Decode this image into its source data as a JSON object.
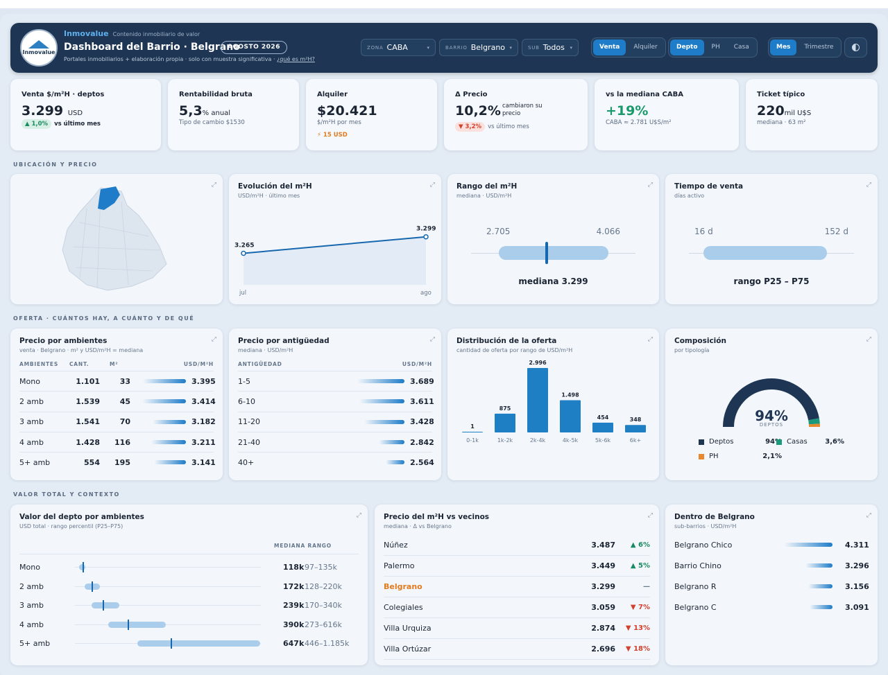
{
  "header": {
    "brand": "Inmovalue",
    "tagline": "Contenido inmobiliario de valor",
    "title": "Dashboard del Barrio · Belgrano",
    "badge": "AGOSTO 2026",
    "subtitle": "Portales inmobiliarios + elaboración propia · solo con muestra significativa ·",
    "help_link": "¿qué es m²H?",
    "logo_text": "Inmovalue",
    "filters": [
      {
        "label": "ZONA",
        "value": "CABA"
      },
      {
        "label": "BARRIO",
        "value": "Belgrano"
      },
      {
        "label": "SUB",
        "value": "Todos"
      }
    ],
    "operation": [
      "Venta",
      "Alquiler"
    ],
    "property_type": [
      "Depto",
      "PH",
      "Casa"
    ],
    "period": [
      "Mes",
      "Trimestre"
    ]
  },
  "kpis": {
    "venta": {
      "label": "Venta $/m²H · deptos",
      "value": "3.299",
      "unit": "USD",
      "delta": "▲ 1,0%",
      "delta_text": "vs último mes"
    },
    "rentabilidad": {
      "label": "Rentabilidad bruta",
      "value": "5,3",
      "unit": "% anual",
      "note": "Tipo de cambio $1530"
    },
    "alquiler": {
      "label": "Alquiler",
      "value": "$20.421",
      "note": "$/m²H por mes",
      "flag": "⚡ 15 USD"
    },
    "precio": {
      "label": "Δ Precio",
      "value": "10,2%",
      "side": "cambiaron su precio",
      "delta": "▼ 3,2%",
      "delta_text": "vs último mes"
    },
    "mediana": {
      "label": "vs la mediana CABA",
      "value": "+19%",
      "note": "CABA ≈ 2.781 U$S/m²"
    },
    "ticket": {
      "label": "Ticket típico",
      "value": "220",
      "unit": "mil U$S",
      "note": "mediana · 63 m²"
    }
  },
  "sections": {
    "ubicacion": "UBICACIÓN Y PRECIO",
    "oferta": "OFERTA · CUÁNTOS HAY, A CUÁNTO Y DE QUÉ",
    "valor": "VALOR TOTAL Y CONTEXTO"
  },
  "evolucion": {
    "title": "Evolución del m²H",
    "sub": "USD/m²H · último mes",
    "chart_data": {
      "type": "line",
      "x": [
        "jul",
        "ago"
      ],
      "values": [
        3265,
        3299
      ],
      "labels": [
        "3.265",
        "3.299"
      ]
    }
  },
  "rango": {
    "title": "Rango del m²H",
    "sub": "mediana · USD/m²H",
    "low": "2.705",
    "high": "4.066",
    "median_label": "mediana 3.299",
    "median_pos": 0.435
  },
  "tiempo": {
    "title": "Tiempo de venta",
    "sub": "días activo",
    "low": "16 d",
    "high": "152 d",
    "range_label": "rango P25 – P75"
  },
  "ambientes": {
    "title": "Precio por ambientes",
    "sub": "venta · Belgrano · m² y USD/m²H = mediana",
    "headers": [
      "AMBIENTES",
      "CANT.",
      "M²",
      "USD/M²H"
    ],
    "rows": [
      {
        "name": "Mono",
        "cant": "1.101",
        "m2": "33",
        "usd": "3.395",
        "v": 3395
      },
      {
        "name": "2 amb",
        "cant": "1.539",
        "m2": "45",
        "usd": "3.414",
        "v": 3414
      },
      {
        "name": "3 amb",
        "cant": "1.541",
        "m2": "70",
        "usd": "3.182",
        "v": 3182
      },
      {
        "name": "4 amb",
        "cant": "1.428",
        "m2": "116",
        "usd": "3.211",
        "v": 3211
      },
      {
        "name": "5+ amb",
        "cant": "554",
        "m2": "195",
        "usd": "3.141",
        "v": 3141
      }
    ]
  },
  "antiguedad": {
    "title": "Precio por antigüedad",
    "sub": "mediana · USD/m²H",
    "headers": [
      "ANTIGÜEDAD",
      "USD/M²H"
    ],
    "rows": [
      {
        "name": "1-5",
        "usd": "3.689",
        "v": 3689
      },
      {
        "name": "6-10",
        "usd": "3.611",
        "v": 3611
      },
      {
        "name": "11-20",
        "usd": "3.428",
        "v": 3428
      },
      {
        "name": "21-40",
        "usd": "2.842",
        "v": 2842
      },
      {
        "name": "40+",
        "usd": "2.564",
        "v": 2564
      }
    ]
  },
  "distribucion": {
    "title": "Distribución de la oferta",
    "sub": "cantidad de oferta por rango de USD/m²H",
    "chart_data": {
      "type": "bar",
      "categories": [
        "0-1k",
        "1k-2k",
        "2k-4k",
        "4k-5k",
        "5k-6k",
        "6k+"
      ],
      "values": [
        1,
        875,
        2996,
        1498,
        454,
        348
      ],
      "labels": [
        "1",
        "875",
        "2.996",
        "1.498",
        "454",
        "348"
      ]
    }
  },
  "composicion": {
    "title": "Composición",
    "sub": "por tipología",
    "center": "94%",
    "center_label": "DEPTOS",
    "chart_data": {
      "type": "pie",
      "categories": [
        "Deptos",
        "Casas",
        "PH"
      ],
      "values": [
        94,
        3.6,
        2.1
      ]
    },
    "legend": [
      {
        "name": "Deptos",
        "value": "94%",
        "color": "#1e3654"
      },
      {
        "name": "Casas",
        "value": "3,6%",
        "color": "#1a9a7a"
      },
      {
        "name": "PH",
        "value": "2,1%",
        "color": "#e8892e"
      }
    ]
  },
  "valor": {
    "title": "Valor del depto por ambientes",
    "sub": "USD total · rango percentil (P25–P75)",
    "headers": [
      "MEDIANA",
      "RANGO"
    ],
    "rows": [
      {
        "name": "Mono",
        "med": "118k",
        "range": "97–135k",
        "lo": 97,
        "hi": 135,
        "m": 118
      },
      {
        "name": "2 amb",
        "med": "172k",
        "range": "128–220k",
        "lo": 128,
        "hi": 220,
        "m": 172
      },
      {
        "name": "3 amb",
        "med": "239k",
        "range": "170–340k",
        "lo": 170,
        "hi": 340,
        "m": 239
      },
      {
        "name": "4 amb",
        "med": "390k",
        "range": "273–616k",
        "lo": 273,
        "hi": 616,
        "m": 390
      },
      {
        "name": "5+ amb",
        "med": "647k",
        "range": "446–1.185k",
        "lo": 446,
        "hi": 1185,
        "m": 647
      }
    ]
  },
  "vecinos": {
    "title": "Precio del m²H vs vecinos",
    "sub": "mediana · Δ vs Belgrano",
    "rows": [
      {
        "name": "Núñez",
        "val": "3.487",
        "delta": "▲ 6%",
        "dir": "up"
      },
      {
        "name": "Palermo",
        "val": "3.449",
        "delta": "▲ 5%",
        "dir": "up"
      },
      {
        "name": "Belgrano",
        "val": "3.299",
        "delta": "—",
        "dir": "self"
      },
      {
        "name": "Colegiales",
        "val": "3.059",
        "delta": "▼ 7%",
        "dir": "down"
      },
      {
        "name": "Villa Urquiza",
        "val": "2.874",
        "delta": "▼ 13%",
        "dir": "down"
      },
      {
        "name": "Villa Ortúzar",
        "val": "2.696",
        "delta": "▼ 18%",
        "dir": "down"
      }
    ]
  },
  "dentro": {
    "title": "Dentro de Belgrano",
    "sub": "sub-barrios · USD/m²H",
    "rows": [
      {
        "name": "Belgrano Chico",
        "val": "4.311",
        "v": 4311
      },
      {
        "name": "Barrio Chino",
        "val": "3.296",
        "v": 3296
      },
      {
        "name": "Belgrano R",
        "val": "3.156",
        "v": 3156
      },
      {
        "name": "Belgrano C",
        "val": "3.091",
        "v": 3091
      }
    ]
  }
}
